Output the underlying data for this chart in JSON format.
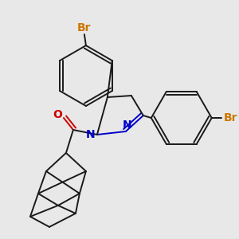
{
  "background_color": "#e8e8e8",
  "bond_color": "#1a1a1a",
  "nitrogen_color": "#0000cc",
  "oxygen_color": "#cc0000",
  "bromine_color": "#cc7700",
  "figsize": [
    3.0,
    3.0
  ],
  "dpi": 100,
  "xlim": [
    0,
    300
  ],
  "ylim": [
    0,
    300
  ]
}
